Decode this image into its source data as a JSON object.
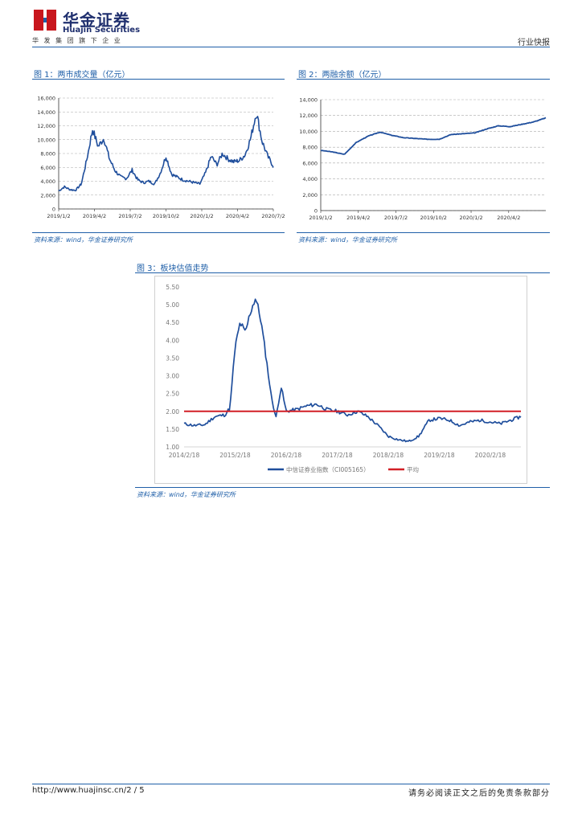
{
  "header": {
    "company_cn": "华金证券",
    "company_en": "Huajin Securities",
    "tagline": "华 发 集 团 旗 下 企 业",
    "doc_type": "行业快报",
    "logo_color": "#c8161d"
  },
  "figures": [
    {
      "title": "图 1：两市成交量（亿元）",
      "source": "资料来源：wind，华金证券研究所"
    },
    {
      "title": "图 2：两融余额（亿元）",
      "source": "资料来源：wind，华金证券研究所"
    },
    {
      "title": "图 3：板块估值走势",
      "source": "资料来源：wind，华金证券研究所"
    }
  ],
  "footer": {
    "url": "http://www.huajinsc.cn/2 / 5",
    "disclaimer": "请务必阅读正文之后的免责条款部分"
  },
  "chart_data": [
    {
      "type": "line",
      "title": "两市成交量（亿元）",
      "series_color": "#1f4e9c",
      "ylim": [
        0,
        16000
      ],
      "yticks": [
        0,
        2000,
        4000,
        6000,
        8000,
        10000,
        12000,
        14000,
        16000
      ],
      "ytick_labels": [
        "0",
        "2,000",
        "4,000",
        "6,000",
        "8,000",
        "10,000",
        "12,000",
        "14,000",
        "16,000"
      ],
      "xlim": [
        0,
        19
      ],
      "xtick_labels": [
        "2019/1/2",
        "2019/4/2",
        "2019/7/2",
        "2019/10/2",
        "2020/1/2",
        "2020/4/2",
        "2020/7/2"
      ],
      "x": [
        0,
        0.5,
        1,
        1.5,
        2,
        2.5,
        3,
        3.5,
        4,
        4.5,
        5,
        5.5,
        6,
        6.5,
        7,
        7.5,
        8,
        8.5,
        9,
        9.5,
        10,
        10.5,
        11,
        11.5,
        12,
        12.5,
        13,
        13.5,
        14,
        14.5,
        15,
        15.5,
        16,
        16.5,
        17,
        17.5,
        18,
        18.5,
        19
      ],
      "values": [
        2600,
        3200,
        2800,
        2700,
        3600,
        7200,
        11500,
        9000,
        10200,
        7200,
        5500,
        4600,
        4400,
        5600,
        4200,
        3800,
        4000,
        3600,
        5200,
        7600,
        5000,
        4600,
        4200,
        4000,
        3800,
        3600,
        5200,
        7600,
        6400,
        8000,
        7200,
        6800,
        7000,
        7800,
        10200,
        14000,
        9800,
        7600,
        6200
      ]
    },
    {
      "type": "line",
      "title": "两融余额（亿元）",
      "series_color": "#1f4e9c",
      "ylim": [
        0,
        14000
      ],
      "yticks": [
        0,
        2000,
        4000,
        6000,
        8000,
        10000,
        12000,
        14000
      ],
      "ytick_labels": [
        "0",
        "2,000",
        "4,000",
        "6,000",
        "8,000",
        "10,000",
        "12,000",
        "14,000"
      ],
      "xlim": [
        0,
        19
      ],
      "xtick_labels": [
        "2019/1/2",
        "2019/4/2",
        "2019/7/2",
        "2019/10/2",
        "2020/1/2",
        "2020/4/2"
      ],
      "x": [
        0,
        1,
        2,
        3,
        4,
        5,
        6,
        7,
        8,
        9,
        10,
        11,
        12,
        13,
        14,
        15,
        16,
        17,
        18,
        19
      ],
      "values": [
        7600,
        7400,
        7100,
        8600,
        9400,
        9900,
        9500,
        9200,
        9100,
        9000,
        9000,
        9600,
        9700,
        9800,
        10300,
        10700,
        10600,
        10900,
        11200,
        11700
      ]
    },
    {
      "type": "line",
      "title": "板块估值走势",
      "ylim": [
        1.0,
        5.5
      ],
      "yticks": [
        1.0,
        1.5,
        2.0,
        2.5,
        3.0,
        3.5,
        4.0,
        4.5,
        5.0,
        5.5
      ],
      "ytick_labels": [
        "1.00",
        "1.50",
        "2.00",
        "2.50",
        "3.00",
        "3.50",
        "4.00",
        "4.50",
        "5.00",
        "5.50"
      ],
      "xlim": [
        0,
        6.6
      ],
      "xtick_labels": [
        "2014/2/18",
        "2015/2/18",
        "2016/2/18",
        "2017/2/18",
        "2018/2/18",
        "2019/2/18",
        "2020/2/18"
      ],
      "series": [
        {
          "name": "中信证券业指数（CI005165）",
          "color": "#1f4e9c",
          "x": [
            0,
            0.2,
            0.4,
            0.6,
            0.8,
            0.9,
            1.0,
            1.1,
            1.2,
            1.3,
            1.4,
            1.5,
            1.6,
            1.7,
            1.8,
            1.9,
            2.0,
            2.2,
            2.4,
            2.6,
            2.8,
            3.0,
            3.2,
            3.4,
            3.6,
            3.8,
            4.0,
            4.2,
            4.4,
            4.6,
            4.8,
            5.0,
            5.2,
            5.4,
            5.6,
            5.8,
            6.0,
            6.2,
            6.4,
            6.6
          ],
          "values": [
            1.65,
            1.6,
            1.62,
            1.85,
            1.9,
            2.1,
            3.8,
            4.5,
            4.2,
            4.8,
            5.2,
            4.6,
            3.6,
            2.5,
            1.8,
            2.7,
            2.0,
            2.05,
            2.15,
            2.2,
            2.05,
            2.0,
            1.9,
            2.0,
            1.85,
            1.6,
            1.3,
            1.2,
            1.15,
            1.3,
            1.75,
            1.8,
            1.75,
            1.6,
            1.7,
            1.75,
            1.7,
            1.65,
            1.75,
            1.85
          ]
        },
        {
          "name": "平均",
          "color": "#d21f26",
          "x": [
            0,
            6.6
          ],
          "values": [
            2.0,
            2.0
          ]
        }
      ]
    }
  ]
}
